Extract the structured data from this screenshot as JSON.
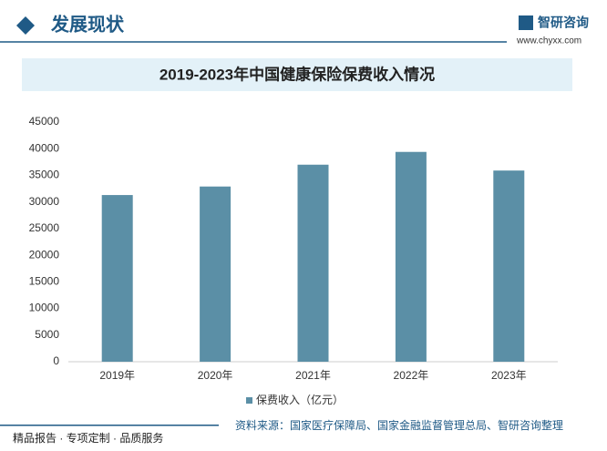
{
  "header": {
    "title": "发展现状",
    "logo_text": "智研咨询",
    "url": "www.chyxx.com"
  },
  "chart_data": {
    "type": "bar",
    "title": "2019-2023年中国健康保险保费收入情况",
    "categories": [
      "2019年",
      "2020年",
      "2021年",
      "2022年",
      "2023年"
    ],
    "series": [
      {
        "name": "保费收入（亿元）",
        "color": "#5b8fa6",
        "values": [
          31300,
          32900,
          37000,
          39400,
          35900
        ]
      }
    ],
    "ylim": [
      0,
      45000
    ],
    "yticks": [
      0,
      5000,
      10000,
      15000,
      20000,
      25000,
      30000,
      35000,
      40000,
      45000
    ],
    "grid": false,
    "legend": "bottom"
  },
  "footer": {
    "slogan": "精品报告 · 专项定制 · 品质服务",
    "source": "资料来源：国家医疗保障局、国家金融监督管理总局、智研咨询整理"
  }
}
